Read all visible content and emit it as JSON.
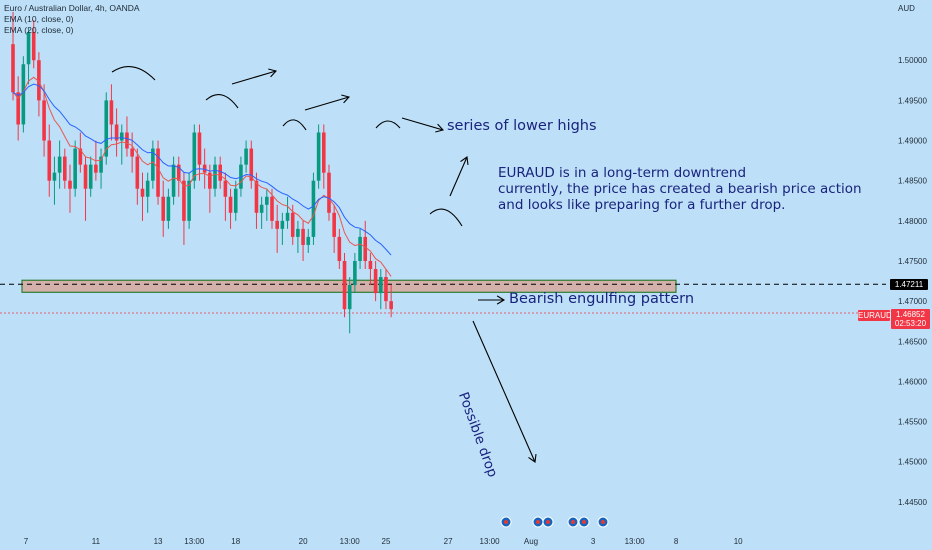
{
  "header": {
    "symbol_line": "Euro / Australian Dollar, 4h, OANDA",
    "ema10_label": "EMA (10, close, 0)",
    "ema20_label": "EMA (20, close, 0)",
    "currency": "AUD"
  },
  "price_tags": {
    "level": "1.47211",
    "pair": "EURAUD",
    "current": "1.46852",
    "timer": "02:53:20"
  },
  "annotations": {
    "lower_highs": "series of lower highs",
    "trend_line1": "EURAUD is in a long-term downtrend",
    "trend_line2": "currently, the price has created a bearish price action",
    "trend_line3": "and looks like preparing for a further drop.",
    "engulfing": "Bearish engulfing pattern",
    "drop": "Possible drop"
  },
  "colors": {
    "background": "#bde0f8",
    "bull": "#089981",
    "bear": "#f23645",
    "ema10": "#e8574f",
    "ema20": "#2962ff",
    "zone_fill": "#d3b1aa",
    "zone_border": "#2e7d32",
    "annotation": "#1a237e"
  },
  "chart_data": {
    "type": "candlestick",
    "ylim": [
      1.4415,
      1.5075
    ],
    "price_axis_ticks": [
      "1.50000",
      "1.49500",
      "1.49000",
      "1.48500",
      "1.48000",
      "1.47500",
      "1.47000",
      "1.46500",
      "1.46000",
      "1.45500",
      "1.45000",
      "1.44500"
    ],
    "price_axis_values": [
      1.5,
      1.495,
      1.49,
      1.485,
      1.48,
      1.475,
      1.47,
      1.465,
      1.46,
      1.455,
      1.45,
      1.445
    ],
    "time_axis_labels": [
      "7",
      "11",
      "13",
      "13:00",
      "18",
      "20",
      "13:00",
      "25",
      "27",
      "13:00",
      "Aug",
      "3",
      "13:00",
      "8",
      "10"
    ],
    "time_axis_bar_index": [
      2.5,
      16,
      28,
      35,
      43,
      56,
      65,
      72,
      84,
      92,
      100,
      112,
      120,
      128,
      140
    ],
    "support_zone": [
      1.4711,
      1.4726
    ],
    "support_level": 1.47211,
    "current_price": 1.46852,
    "candles": [
      [
        1.502,
        1.506,
        1.495,
        1.496
      ],
      [
        1.496,
        1.498,
        1.49,
        1.492
      ],
      [
        1.492,
        1.5005,
        1.491,
        1.4995
      ],
      [
        1.4995,
        1.504,
        1.497,
        1.5035
      ],
      [
        1.5035,
        1.505,
        1.499,
        1.5
      ],
      [
        1.5,
        1.501,
        1.493,
        1.495
      ],
      [
        1.495,
        1.497,
        1.488,
        1.49
      ],
      [
        1.49,
        1.492,
        1.483,
        1.485
      ],
      [
        1.485,
        1.488,
        1.482,
        1.486
      ],
      [
        1.486,
        1.49,
        1.484,
        1.488
      ],
      [
        1.488,
        1.489,
        1.484,
        1.485
      ],
      [
        1.485,
        1.487,
        1.481,
        1.484
      ],
      [
        1.484,
        1.49,
        1.483,
        1.489
      ],
      [
        1.489,
        1.491,
        1.486,
        1.487
      ],
      [
        1.487,
        1.488,
        1.48,
        1.484
      ],
      [
        1.484,
        1.488,
        1.483,
        1.487
      ],
      [
        1.487,
        1.49,
        1.485,
        1.486
      ],
      [
        1.486,
        1.489,
        1.484,
        1.488
      ],
      [
        1.488,
        1.496,
        1.487,
        1.495
      ],
      [
        1.495,
        1.497,
        1.49,
        1.492
      ],
      [
        1.492,
        1.494,
        1.488,
        1.49
      ],
      [
        1.49,
        1.492,
        1.487,
        1.491
      ],
      [
        1.491,
        1.493,
        1.488,
        1.489
      ],
      [
        1.489,
        1.491,
        1.486,
        1.488
      ],
      [
        1.488,
        1.489,
        1.482,
        1.484
      ],
      [
        1.484,
        1.486,
        1.48,
        1.483
      ],
      [
        1.483,
        1.486,
        1.481,
        1.485
      ],
      [
        1.485,
        1.49,
        1.484,
        1.489
      ],
      [
        1.489,
        1.49,
        1.482,
        1.483
      ],
      [
        1.483,
        1.485,
        1.478,
        1.48
      ],
      [
        1.48,
        1.484,
        1.479,
        1.483
      ],
      [
        1.483,
        1.488,
        1.482,
        1.487
      ],
      [
        1.487,
        1.488,
        1.483,
        1.485
      ],
      [
        1.485,
        1.486,
        1.477,
        1.48
      ],
      [
        1.48,
        1.486,
        1.479,
        1.485
      ],
      [
        1.485,
        1.492,
        1.484,
        1.491
      ],
      [
        1.491,
        1.492,
        1.485,
        1.487
      ],
      [
        1.487,
        1.489,
        1.484,
        1.486
      ],
      [
        1.486,
        1.487,
        1.481,
        1.484
      ],
      [
        1.484,
        1.488,
        1.483,
        1.487
      ],
      [
        1.487,
        1.488,
        1.484,
        1.485
      ],
      [
        1.485,
        1.486,
        1.48,
        1.483
      ],
      [
        1.483,
        1.484,
        1.479,
        1.481
      ],
      [
        1.481,
        1.485,
        1.48,
        1.484
      ],
      [
        1.484,
        1.488,
        1.483,
        1.487
      ],
      [
        1.487,
        1.49,
        1.486,
        1.489
      ],
      [
        1.489,
        1.49,
        1.484,
        1.485
      ],
      [
        1.485,
        1.486,
        1.479,
        1.481
      ],
      [
        1.481,
        1.483,
        1.479,
        1.482
      ],
      [
        1.482,
        1.484,
        1.48,
        1.483
      ],
      [
        1.483,
        1.484,
        1.479,
        1.48
      ],
      [
        1.48,
        1.482,
        1.476,
        1.479
      ],
      [
        1.479,
        1.481,
        1.477,
        1.48
      ],
      [
        1.48,
        1.483,
        1.479,
        1.481
      ],
      [
        1.481,
        1.482,
        1.477,
        1.478
      ],
      [
        1.478,
        1.48,
        1.476,
        1.479
      ],
      [
        1.479,
        1.48,
        1.475,
        1.477
      ],
      [
        1.477,
        1.479,
        1.476,
        1.478
      ],
      [
        1.478,
        1.486,
        1.477,
        1.485
      ],
      [
        1.485,
        1.492,
        1.484,
        1.491
      ],
      [
        1.491,
        1.492,
        1.484,
        1.486
      ],
      [
        1.486,
        1.487,
        1.48,
        1.481
      ],
      [
        1.481,
        1.482,
        1.476,
        1.478
      ],
      [
        1.478,
        1.479,
        1.474,
        1.475
      ],
      [
        1.475,
        1.476,
        1.468,
        1.469
      ],
      [
        1.469,
        1.473,
        1.466,
        1.472
      ],
      [
        1.472,
        1.476,
        1.471,
        1.475
      ],
      [
        1.475,
        1.479,
        1.474,
        1.478
      ],
      [
        1.478,
        1.48,
        1.474,
        1.475
      ],
      [
        1.475,
        1.476,
        1.472,
        1.474
      ],
      [
        1.474,
        1.475,
        1.47,
        1.471
      ],
      [
        1.471,
        1.474,
        1.469,
        1.473
      ],
      [
        1.473,
        1.474,
        1.469,
        1.47
      ],
      [
        1.47,
        1.472,
        1.468,
        1.469
      ]
    ]
  }
}
